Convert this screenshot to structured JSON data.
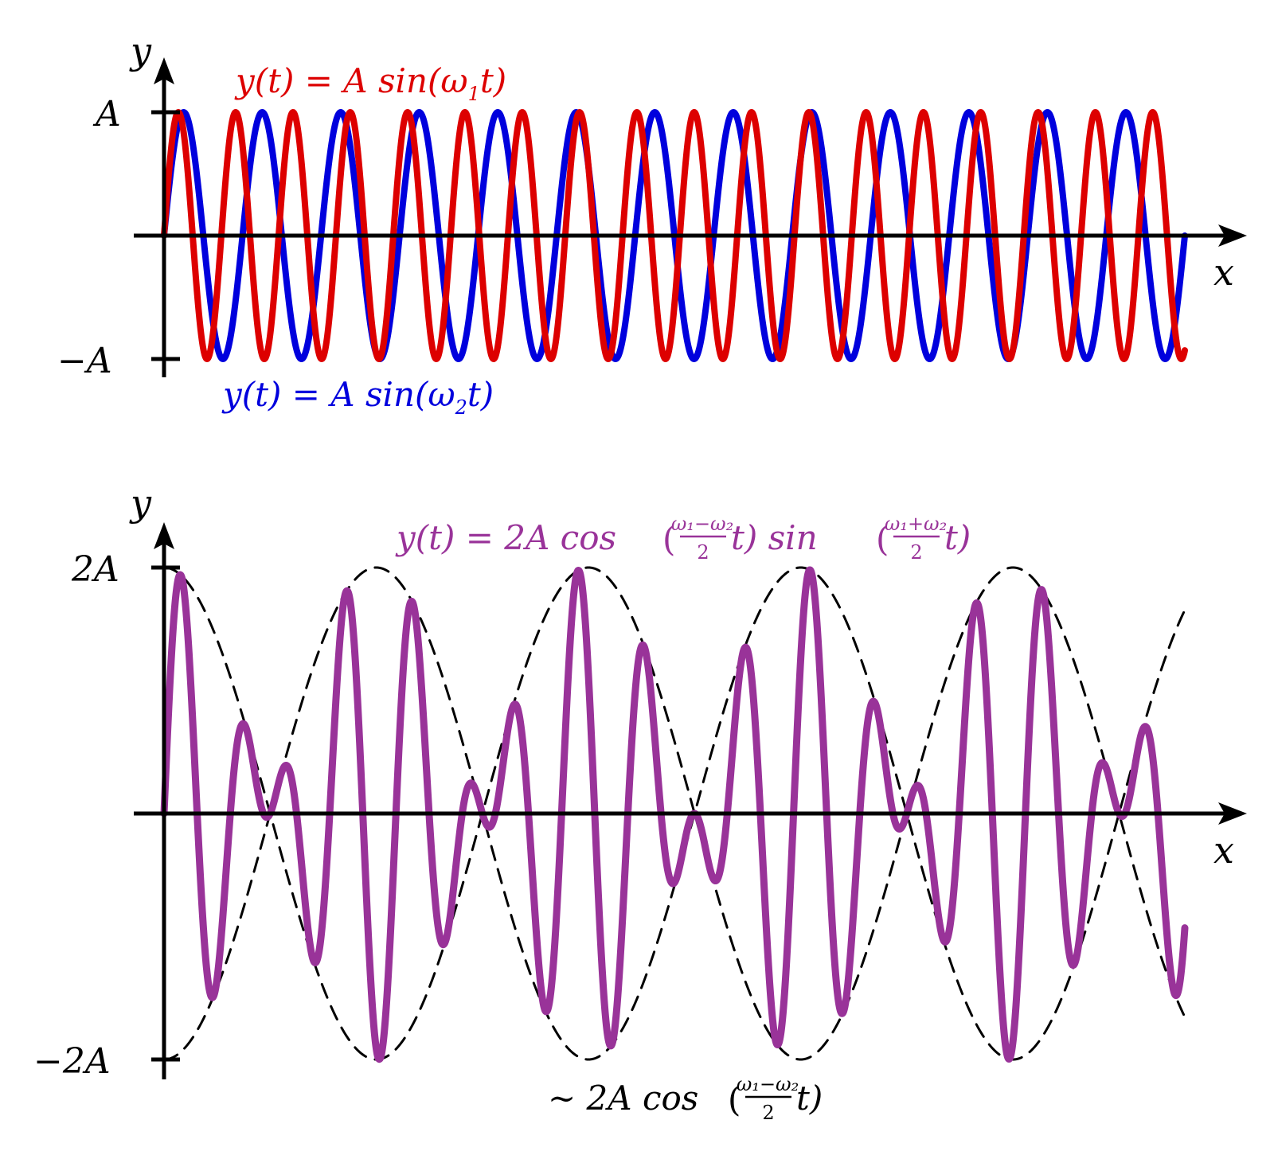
{
  "chart_data": [
    {
      "type": "line",
      "x_axis_label": "x",
      "y_axis_label": "y",
      "y_ticks": [
        {
          "value": 1,
          "label": "A"
        },
        {
          "value": -1,
          "label": "−A"
        }
      ],
      "x_range_periods_w2": 13,
      "ratio_w1_over_w2": 1.37,
      "series": [
        {
          "name": "y(t) = A sin(ω₁t)",
          "color": "#dd0000",
          "amplitude": 1,
          "angular_frequency": "ω₁"
        },
        {
          "name": "y(t) = A sin(ω₂t)",
          "color": "#0000dd",
          "amplitude": 1,
          "angular_frequency": "ω₂"
        }
      ],
      "labels": {
        "red": {
          "pre": "y(t) = A sin(ω",
          "sub": "1",
          "post": "t)"
        },
        "blue": {
          "pre": "y(t) = A sin(ω",
          "sub": "2",
          "post": "t)"
        }
      }
    },
    {
      "type": "line",
      "x_axis_label": "x",
      "y_axis_label": "y",
      "y_ticks": [
        {
          "value": 2,
          "label": "2A"
        },
        {
          "value": -2,
          "label": "−2A"
        }
      ],
      "series": [
        {
          "name": "y(t) = 2A cos((ω₁−ω₂)/2 t) sin((ω₁+ω₂)/2 t)",
          "color": "#993399",
          "amplitude": 2
        },
        {
          "name": "~ 2A cos((ω₁−ω₂)/2 t)",
          "color": "#000000",
          "style": "dashed",
          "envelope": true
        }
      ],
      "labels": {
        "sum": {
          "lead": "y(t) = 2A cos",
          "frac1_num": "ω₁−ω₂",
          "frac1_den": "2",
          "mid": "t) sin",
          "frac2_num": "ω₁+ω₂",
          "frac2_den": "2",
          "tail": "t)"
        },
        "envelope": {
          "lead": "∼ 2A cos",
          "frac_num": "ω₁−ω₂",
          "frac_den": "2",
          "tail": "t)"
        }
      }
    }
  ]
}
